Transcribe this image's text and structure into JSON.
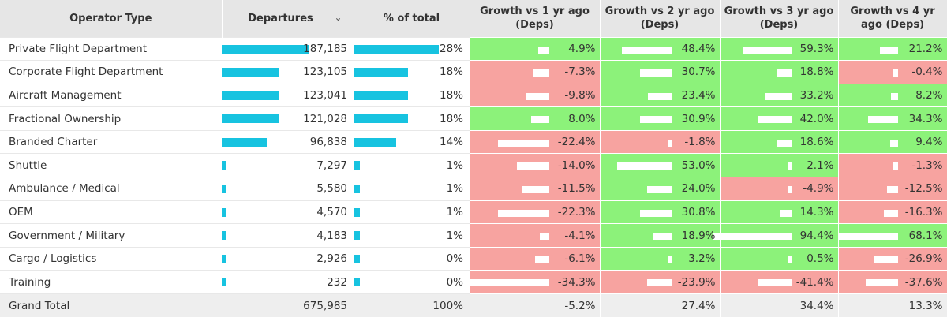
{
  "headers": {
    "operator_type": "Operator Type",
    "departures": "Departures",
    "pct_total": "% of total",
    "g1": "Growth vs 1 yr ago (Deps)",
    "g2": "Growth vs 2 yr ago (Deps)",
    "g3": "Growth vs 3 yr ago (Deps)",
    "g4": "Growth vs 4 yr ago (Deps)"
  },
  "colors": {
    "bar": "#17c3e0",
    "positive": "#8cf27a",
    "negative": "#f7a3a0"
  },
  "bar_max": {
    "departures": 187185,
    "pct": 28
  },
  "rows": [
    {
      "name": "Private Flight Department",
      "departures": "187,185",
      "dep_value": 187185,
      "pct": "28%",
      "pct_value": 28,
      "g1": "4.9%",
      "g2": "48.4%",
      "g3": "59.3%",
      "g4": "21.2%"
    },
    {
      "name": "Corporate Flight Department",
      "departures": "123,105",
      "dep_value": 123105,
      "pct": "18%",
      "pct_value": 18,
      "g1": "-7.3%",
      "g2": "30.7%",
      "g3": "18.8%",
      "g4": "-0.4%"
    },
    {
      "name": "Aircraft Management",
      "departures": "123,041",
      "dep_value": 123041,
      "pct": "18%",
      "pct_value": 18,
      "g1": "-9.8%",
      "g2": "23.4%",
      "g3": "33.2%",
      "g4": "8.2%"
    },
    {
      "name": "Fractional Ownership",
      "departures": "121,028",
      "dep_value": 121028,
      "pct": "18%",
      "pct_value": 18,
      "g1": "8.0%",
      "g2": "30.9%",
      "g3": "42.0%",
      "g4": "34.3%"
    },
    {
      "name": "Branded Charter",
      "departures": "96,838",
      "dep_value": 96838,
      "pct": "14%",
      "pct_value": 14,
      "g1": "-22.4%",
      "g2": "-1.8%",
      "g3": "18.6%",
      "g4": "9.4%"
    },
    {
      "name": "Shuttle",
      "departures": "7,297",
      "dep_value": 7297,
      "pct": "1%",
      "pct_value": 1,
      "g1": "-14.0%",
      "g2": "53.0%",
      "g3": "2.1%",
      "g4": "-1.3%"
    },
    {
      "name": "Ambulance / Medical",
      "departures": "5,580",
      "dep_value": 5580,
      "pct": "1%",
      "pct_value": 1,
      "g1": "-11.5%",
      "g2": "24.0%",
      "g3": "-4.9%",
      "g4": "-12.5%"
    },
    {
      "name": "OEM",
      "departures": "4,570",
      "dep_value": 4570,
      "pct": "1%",
      "pct_value": 1,
      "g1": "-22.3%",
      "g2": "30.8%",
      "g3": "14.3%",
      "g4": "-16.3%"
    },
    {
      "name": "Government / Military",
      "departures": "4,183",
      "dep_value": 4183,
      "pct": "1%",
      "pct_value": 1,
      "g1": "-4.1%",
      "g2": "18.9%",
      "g3": "94.4%",
      "g4": "68.1%"
    },
    {
      "name": "Cargo / Logistics",
      "departures": "2,926",
      "dep_value": 2926,
      "pct": "0%",
      "pct_value": 0.4,
      "g1": "-6.1%",
      "g2": "3.2%",
      "g3": "0.5%",
      "g4": "-26.9%"
    },
    {
      "name": "Training",
      "departures": "232",
      "dep_value": 232,
      "pct": "0%",
      "pct_value": 0.1,
      "g1": "-34.3%",
      "g2": "-23.9%",
      "g3": "-41.4%",
      "g4": "-37.6%"
    }
  ],
  "total": {
    "name": "Grand Total",
    "departures": "675,985",
    "pct": "100%",
    "g1": "-5.2%",
    "g2": "27.4%",
    "g3": "34.4%",
    "g4": "13.3%"
  }
}
